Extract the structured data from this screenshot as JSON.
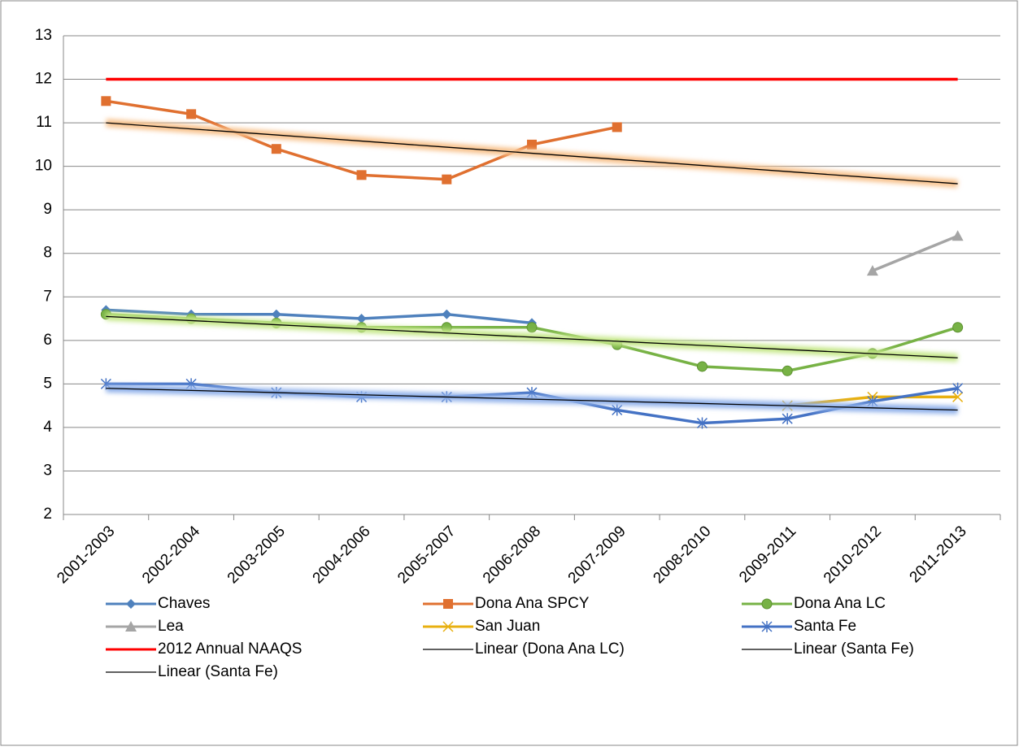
{
  "chart_data": {
    "type": "line",
    "categories": [
      "2001-2003",
      "2002-2004",
      "2003-2005",
      "2004-2006",
      "2005-2007",
      "2006-2008",
      "2007-2009",
      "2008-2010",
      "2009-2011",
      "2010-2012",
      "2011-2013"
    ],
    "series": [
      {
        "name": "Chaves",
        "color": "#4f81bd",
        "marker": "diamond",
        "values": [
          6.7,
          6.6,
          6.6,
          6.5,
          6.6,
          6.4,
          null,
          null,
          null,
          null,
          null
        ]
      },
      {
        "name": "Dona Ana SPCY",
        "color": "#e07030",
        "marker": "square",
        "values": [
          11.5,
          11.2,
          10.4,
          9.8,
          9.7,
          10.5,
          10.9,
          null,
          null,
          null,
          null
        ]
      },
      {
        "name": "Dona Ana LC",
        "color": "#77b245",
        "marker": "circle",
        "values": [
          6.6,
          6.5,
          6.4,
          6.3,
          6.3,
          6.3,
          5.9,
          5.4,
          5.3,
          5.7,
          6.3
        ]
      },
      {
        "name": "Lea",
        "color": "#a5a5a5",
        "marker": "triangle",
        "values": [
          null,
          null,
          null,
          null,
          null,
          null,
          null,
          null,
          null,
          7.6,
          8.4
        ]
      },
      {
        "name": "San Juan",
        "color": "#e8b010",
        "marker": "x",
        "values": [
          null,
          null,
          null,
          null,
          null,
          null,
          null,
          null,
          4.5,
          4.7,
          4.7
        ]
      },
      {
        "name": "Santa Fe",
        "color": "#4472c4",
        "marker": "star",
        "values": [
          5.0,
          5.0,
          4.8,
          4.7,
          4.7,
          4.8,
          4.4,
          4.1,
          4.2,
          4.6,
          4.9
        ]
      },
      {
        "name": "2012 Annual NAAQS",
        "color": "#ff0000",
        "marker": "none",
        "values": [
          12,
          12,
          12,
          12,
          12,
          12,
          12,
          12,
          12,
          12,
          12
        ]
      },
      {
        "name": "Linear (Dona Ana LC)",
        "color": "#000000",
        "glow": "#c6e88a",
        "marker": "none",
        "values": [
          6.55,
          6.455,
          6.36,
          6.265,
          6.17,
          6.075,
          5.98,
          5.885,
          5.79,
          5.695,
          5.6
        ]
      },
      {
        "name": "Linear (Santa Fe)",
        "color": "#000000",
        "glow": "#8fb0ea",
        "marker": "none",
        "values": [
          4.9,
          4.85,
          4.8,
          4.75,
          4.7,
          4.65,
          4.6,
          4.55,
          4.5,
          4.45,
          4.4
        ]
      },
      {
        "name": "Linear (Santa Fe)",
        "color": "#000000",
        "glow": "#f8c38e",
        "marker": "none",
        "values": [
          11.0,
          10.86,
          10.72,
          10.58,
          10.44,
          10.3,
          10.16,
          10.02,
          9.88,
          9.74,
          9.6
        ]
      }
    ],
    "ylim": [
      2,
      13
    ],
    "yticks": [
      2,
      3,
      4,
      5,
      6,
      7,
      8,
      9,
      10,
      11,
      12,
      13
    ],
    "grid": true
  }
}
